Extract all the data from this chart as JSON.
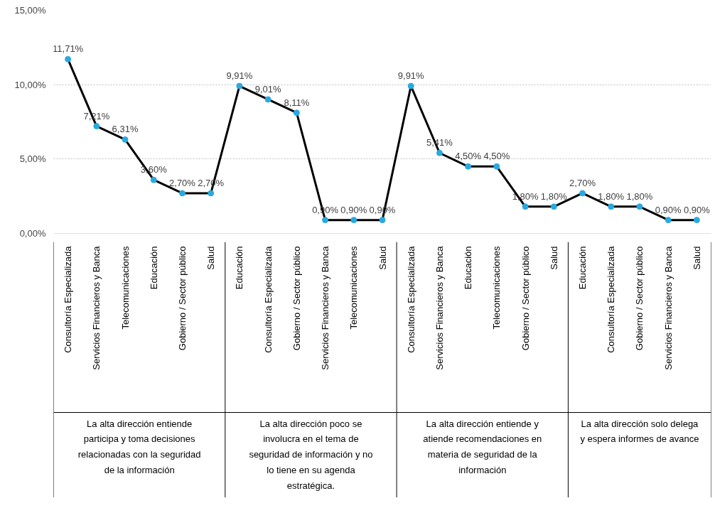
{
  "chart_data": {
    "type": "line",
    "categories": [
      "Consultoría Especializada",
      "Servicios Financieros y Banca",
      "Telecomunicaciones",
      "Educación",
      "Gobierno / Sector público",
      "Salud",
      "Educación",
      "Consultoría Especializada",
      "Gobierno / Sector público",
      "Servicios Financieros y Banca",
      "Telecomunicaciones",
      "Salud",
      "Consultoría Especializada",
      "Servicios Financieros y Banca",
      "Educación",
      "Telecomunicaciones",
      "Gobierno / Sector público",
      "Salud",
      "Educación",
      "Consultoría Especializada",
      "Gobierno / Sector público",
      "Servicios Financieros y Banca",
      "Salud"
    ],
    "series": [
      {
        "color": "#000000",
        "values": [
          11.71,
          7.21,
          6.31,
          3.6,
          2.7,
          2.7,
          9.91,
          9.01,
          8.11,
          0.9,
          0.9,
          0.9,
          9.91,
          5.41,
          4.5,
          4.5,
          1.8,
          1.8,
          2.7,
          1.8,
          1.8,
          0.9,
          0.9
        ],
        "value_labels": [
          "11,71%",
          "7,21%",
          "6,31%",
          "3,60%",
          "2,70%",
          "2,70%",
          "9,91%",
          "9,01%",
          "8,11%",
          "0,90%",
          "0,90%",
          "0,90%",
          "9,91%",
          "5,41%",
          "4,50%",
          "4,50%",
          "1,80%",
          "1,80%",
          "2,70%",
          "1,80%",
          "1,80%",
          "0,90%",
          "0,90%"
        ]
      }
    ],
    "annotations": [
      "La alta dirección entiende participa y toma decisiones relacionadas con la seguridad de la información",
      "La alta dirección poco se involucra en el tema de seguridad de información y no lo tiene en su agenda estratégica.",
      "La alta dirección entiende y atiende recomendaciones en materia de seguridad de la información",
      "La alta dirección solo delega y espera informes de avance"
    ],
    "ylim": [
      0,
      15
    ],
    "yticks": [
      {
        "value": 0,
        "label": "0,00%"
      },
      {
        "value": 5,
        "label": "5,00%"
      },
      {
        "value": 10,
        "label": "10,00%"
      },
      {
        "value": 15,
        "label": "15,00%"
      }
    ],
    "grid": "y",
    "marker": "circle",
    "line_style": "solid"
  }
}
